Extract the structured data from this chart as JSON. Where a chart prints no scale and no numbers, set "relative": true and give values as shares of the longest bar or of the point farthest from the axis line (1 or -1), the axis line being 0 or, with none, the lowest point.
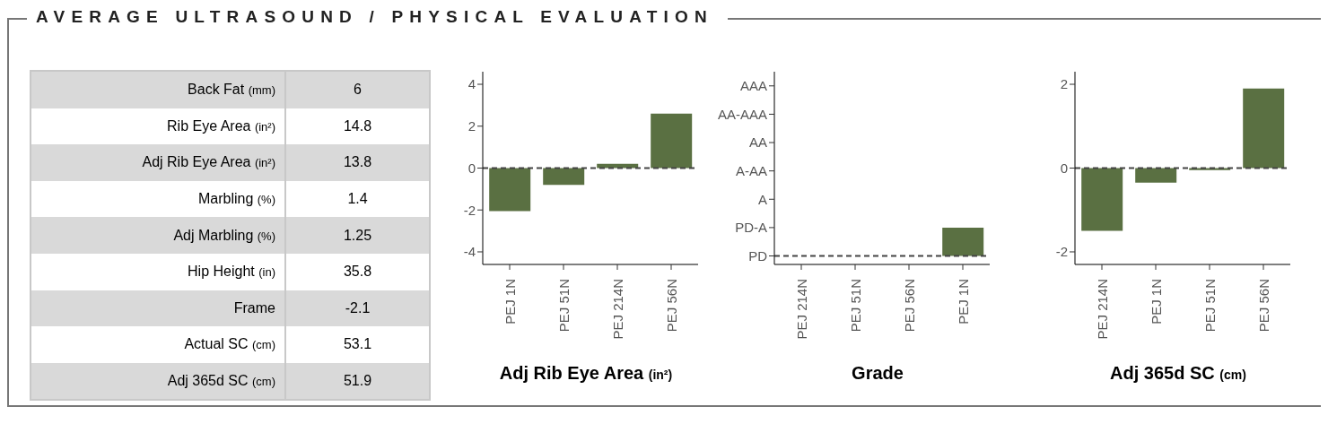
{
  "chart_data": [
    {
      "type": "other",
      "title": "AVERAGE ULTRASOUND / PHYSICAL EVALUATION",
      "categories": [
        "Back Fat (mm)",
        "Rib Eye Area (in²)",
        "Adj Rib Eye Area (in²)",
        "Marbling (%)",
        "Adj Marbling (%)",
        "Hip Height (in)",
        "Frame",
        "Actual SC (cm)",
        "Adj 365d SC (cm)"
      ],
      "values": [
        6,
        14.8,
        13.8,
        1.4,
        1.25,
        35.8,
        -2.1,
        53.1,
        51.9
      ],
      "data_labels": true
    },
    {
      "type": "bar",
      "xlabel": "Adj Rib Eye Area (in²)",
      "categories": [
        "PEJ 1N",
        "PEJ 51N",
        "PEJ 214N",
        "PEJ 56N"
      ],
      "values": [
        -2.05,
        -0.8,
        0.2,
        2.6
      ],
      "color": "#5a7042",
      "ylim": [
        -4.6,
        4.6
      ],
      "yticks": [
        -4,
        -2,
        0,
        2,
        4
      ],
      "ref_lines": [
        {
          "axis": "y",
          "value": 0,
          "line_style": "dashed"
        }
      ]
    },
    {
      "type": "bar",
      "xlabel": "Grade",
      "categories": [
        "PEJ 214N",
        "PEJ 51N",
        "PEJ 56N",
        "PEJ 1N"
      ],
      "values": [
        null,
        null,
        null,
        1
      ],
      "relative": true,
      "annotations": [
        "PD",
        "PD-A",
        "A",
        "A-AA",
        "AA",
        "AA-AAA",
        "AAA"
      ],
      "color": "#5a7042",
      "ref_lines": [
        {
          "axis": "y",
          "value": 0,
          "line_style": "dashed"
        }
      ]
    },
    {
      "type": "bar",
      "xlabel": "Adj 365d SC (cm)",
      "categories": [
        "PEJ 214N",
        "PEJ 1N",
        "PEJ 51N",
        "PEJ 56N"
      ],
      "values": [
        -1.5,
        -0.35,
        -0.05,
        1.9
      ],
      "color": "#5a7042",
      "ylim": [
        -2.3,
        2.3
      ],
      "yticks": [
        -2,
        0,
        2
      ],
      "ref_lines": [
        {
          "axis": "y",
          "value": 0,
          "line_style": "dashed"
        }
      ]
    }
  ]
}
